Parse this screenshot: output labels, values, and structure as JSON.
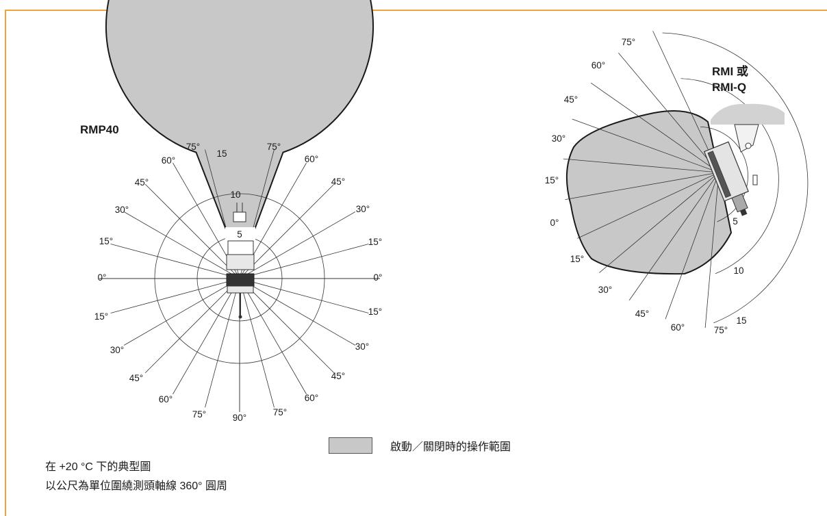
{
  "left_diagram": {
    "title": "RMP40",
    "angle_labels": {
      "upper_left": [
        "75°",
        "60°",
        "45°",
        "30°",
        "15°"
      ],
      "upper_right": [
        "75°",
        "60°",
        "45°",
        "30°",
        "15°"
      ],
      "zero_left": "0°",
      "zero_right": "0°",
      "lower_left": [
        "15°",
        "30°",
        "45°",
        "60°",
        "75°"
      ],
      "lower_right": [
        "15°",
        "30°",
        "45°",
        "60°",
        "75°"
      ],
      "bottom": "90°"
    },
    "range_labels": [
      "5",
      "10",
      "15"
    ]
  },
  "right_diagram": {
    "title_line1": "RMI 或",
    "title_line2": "RMI-Q",
    "angle_labels_upper": [
      "75°",
      "60°",
      "45°",
      "30°",
      "15°",
      "0°"
    ],
    "angle_labels_lower": [
      "15°",
      "30°",
      "45°",
      "60°",
      "75°"
    ],
    "range_labels": [
      "5",
      "10",
      "15"
    ]
  },
  "legend": {
    "label": "啟動／關閉時的操作範圍",
    "fill_color": "#c8c8c8"
  },
  "notes": {
    "line1": "在 +20 °C 下的典型圖",
    "line2": "以公尺為單位圍繞測頭軸線 360° 圓周"
  },
  "colors": {
    "frame": "#f0a23c",
    "envelope": "#c8c8c8",
    "outline": "#1a1a1a"
  }
}
